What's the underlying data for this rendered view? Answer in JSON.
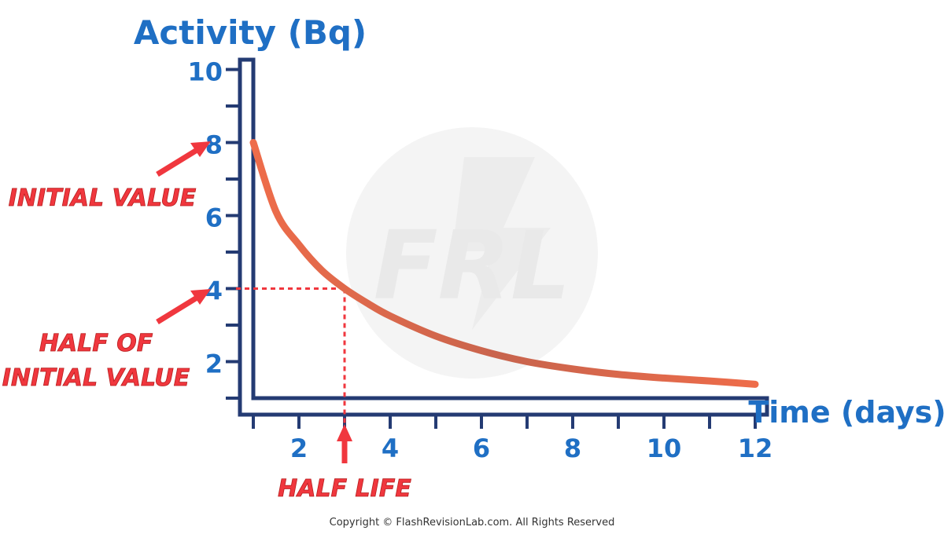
{
  "colors": {
    "axis": "#243b73",
    "label": "#1f6fc4",
    "curve": "#ee6c4a",
    "curve_mid": "#c8644d",
    "annotation": "#f0373e",
    "watermark": "#f4f4f4"
  },
  "watermark_text": "FRL",
  "copyright": "Copyright © FlashRevisionLab.com. All Rights Reserved",
  "annotations": {
    "initial_value": "INITIAL VALUE",
    "half_initial_line1": "HALF OF",
    "half_initial_line2": "INITIAL VALUE",
    "half_life": "HALF LIFE"
  },
  "chart_data": {
    "type": "line",
    "title": "",
    "ylabel": "Activity (Bq)",
    "xlabel": "Time (days)",
    "xlim": [
      1,
      12
    ],
    "ylim": [
      1,
      10
    ],
    "xticks": [
      "2",
      "4",
      "6",
      "8",
      "10",
      "12"
    ],
    "yticks": [
      "2",
      "4",
      "6",
      "8",
      "10"
    ],
    "grid": false,
    "legend": "none",
    "series": [
      {
        "x": [
          1,
          1.5,
          2,
          2.5,
          3,
          3.5,
          4,
          5,
          6,
          7,
          8,
          9,
          10,
          11,
          12
        ],
        "y": [
          8,
          6.1,
          5.2,
          4.5,
          4,
          3.6,
          3.25,
          2.7,
          2.3,
          2.0,
          1.8,
          1.65,
          1.55,
          1.47,
          1.38
        ]
      }
    ],
    "half_life_marker": {
      "x": 3,
      "y": 4
    }
  }
}
